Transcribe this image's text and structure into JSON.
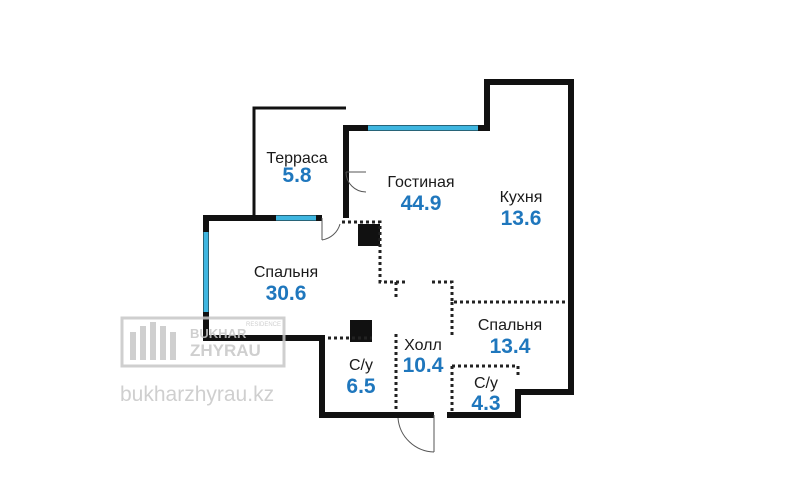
{
  "colors": {
    "wall": "#111111",
    "window": "#3fb6e0",
    "area_text": "#1f77bd",
    "label_text": "#1a1a1a",
    "watermark": "#c7c7c7"
  },
  "rooms": [
    {
      "name": "Терраса",
      "area": "5.8"
    },
    {
      "name": "Гостиная",
      "area": "44.9"
    },
    {
      "name": "Кухня",
      "area": "13.6"
    },
    {
      "name": "Спальня",
      "area": "30.6"
    },
    {
      "name": "Спальня",
      "area": "13.4"
    },
    {
      "name": "Холл",
      "area": "10.4"
    },
    {
      "name": "С/у",
      "area": "6.5"
    },
    {
      "name": "С/у",
      "area": "4.3"
    }
  ],
  "watermark": {
    "logo_line1": "BUKHAR",
    "logo_line2": "ZHYRAU",
    "logo_sub": "RESIDENCE",
    "url": "bukharzhyrau.kz"
  }
}
